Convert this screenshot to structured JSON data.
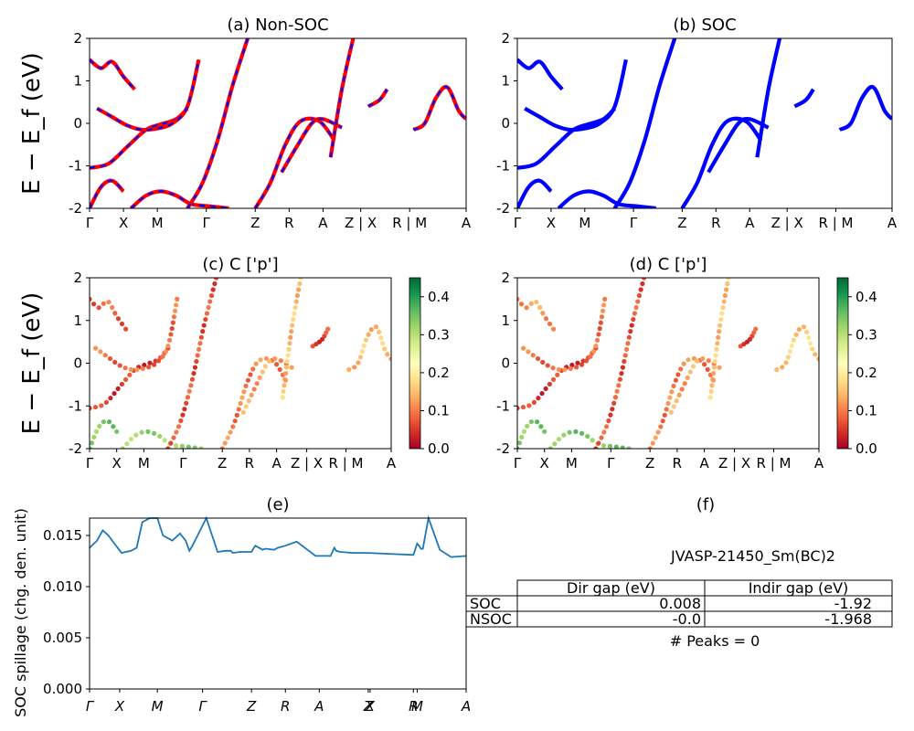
{
  "chart_data": [
    {
      "id": "a",
      "type": "line",
      "title": "(a) Non-SOC",
      "ylabel": "E − E_f (eV)",
      "ylim": [
        -2,
        2
      ],
      "yticks": [
        -2,
        -1,
        0,
        1,
        2
      ],
      "kpath_labels": [
        "Γ",
        "X",
        "M",
        "Γ",
        "Z",
        "R",
        "A",
        "Z | X",
        "R | M",
        "A"
      ],
      "line_colors": [
        "#ff0000",
        "#0000ff"
      ],
      "line_style": "red solid with blue dashed overlay",
      "series": [
        {
          "x": [
            0,
            0.05,
            0.1,
            0.15,
            0.19,
            0.23,
            0.26
          ],
          "y": [
            -1.05,
            -0.95,
            -0.55,
            -0.15,
            -0.02,
            0.1,
            0.35
          ]
        },
        {
          "x": [
            0.02,
            0.06,
            0.1,
            0.14,
            0.18,
            0.22,
            0.26,
            0.29
          ],
          "y": [
            0.35,
            0.15,
            -0.05,
            -0.15,
            -0.12,
            0.0,
            0.4,
            1.5
          ]
        },
        {
          "x": [
            0,
            0.03,
            0.06,
            0.09
          ],
          "y": [
            -2.0,
            -1.5,
            -1.35,
            -1.6
          ]
        },
        {
          "x": [
            0.11,
            0.15,
            0.19,
            0.23,
            0.27,
            0.32,
            0.37
          ],
          "y": [
            -2.0,
            -1.7,
            -1.6,
            -1.7,
            -1.9,
            -1.95,
            -2.0
          ]
        },
        {
          "x": [
            0,
            0.03,
            0.06,
            0.09,
            0.12
          ],
          "y": [
            1.5,
            1.3,
            1.45,
            1.1,
            0.8
          ]
        },
        {
          "x": [
            0.26,
            0.3,
            0.34,
            0.38,
            0.42
          ],
          "y": [
            -2.0,
            -1.4,
            -0.4,
            0.9,
            2.0
          ]
        },
        {
          "x": [
            0.44,
            0.48,
            0.52,
            0.56,
            0.61,
            0.65
          ],
          "y": [
            -2.0,
            -1.4,
            -0.5,
            0.05,
            0.05,
            -0.4
          ]
        },
        {
          "x": [
            0.51,
            0.55,
            0.59,
            0.62,
            0.67
          ],
          "y": [
            -1.15,
            -0.55,
            0.0,
            0.1,
            -0.1
          ]
        },
        {
          "x": [
            0.64,
            0.67,
            0.7
          ],
          "y": [
            -0.8,
            0.8,
            2.0
          ]
        },
        {
          "x": [
            0.74,
            0.77,
            0.79
          ],
          "y": [
            0.4,
            0.55,
            0.8
          ]
        },
        {
          "x": [
            0.86,
            0.89,
            0.92,
            0.95,
            0.98,
            1.0
          ],
          "y": [
            -0.15,
            0.0,
            0.6,
            0.85,
            0.3,
            0.1
          ]
        }
      ]
    },
    {
      "id": "b",
      "type": "line",
      "title": "(b) SOC",
      "ylim": [
        -2,
        2
      ],
      "yticks": [
        -2,
        -1,
        0,
        1,
        2
      ],
      "kpath_labels": [
        "Γ",
        "X",
        "M",
        "Γ",
        "Z",
        "R",
        "A",
        "Z | X",
        "R | M",
        "A"
      ],
      "line_colors": [
        "#0000ff"
      ],
      "series": [
        {
          "x": [
            0,
            0.05,
            0.1,
            0.15,
            0.19,
            0.23,
            0.26
          ],
          "y": [
            -1.05,
            -0.95,
            -0.55,
            -0.15,
            -0.02,
            0.1,
            0.35
          ]
        },
        {
          "x": [
            0.02,
            0.06,
            0.1,
            0.14,
            0.18,
            0.22,
            0.26,
            0.29
          ],
          "y": [
            0.35,
            0.15,
            -0.05,
            -0.15,
            -0.12,
            0.0,
            0.4,
            1.5
          ]
        },
        {
          "x": [
            0,
            0.03,
            0.06,
            0.09
          ],
          "y": [
            -2.0,
            -1.5,
            -1.35,
            -1.6
          ]
        },
        {
          "x": [
            0.11,
            0.15,
            0.19,
            0.23,
            0.27,
            0.32,
            0.37
          ],
          "y": [
            -2.0,
            -1.7,
            -1.6,
            -1.7,
            -1.9,
            -1.95,
            -2.0
          ]
        },
        {
          "x": [
            0,
            0.03,
            0.06,
            0.09,
            0.12
          ],
          "y": [
            1.5,
            1.3,
            1.45,
            1.1,
            0.8
          ]
        },
        {
          "x": [
            0.26,
            0.3,
            0.34,
            0.38,
            0.42
          ],
          "y": [
            -2.0,
            -1.4,
            -0.4,
            0.9,
            2.0
          ]
        },
        {
          "x": [
            0.44,
            0.48,
            0.52,
            0.56,
            0.61,
            0.65
          ],
          "y": [
            -2.0,
            -1.4,
            -0.5,
            0.05,
            0.05,
            -0.4
          ]
        },
        {
          "x": [
            0.51,
            0.55,
            0.59,
            0.62,
            0.67
          ],
          "y": [
            -1.15,
            -0.55,
            0.0,
            0.1,
            -0.1
          ]
        },
        {
          "x": [
            0.64,
            0.67,
            0.7
          ],
          "y": [
            -0.8,
            0.8,
            2.0
          ]
        },
        {
          "x": [
            0.74,
            0.77,
            0.79
          ],
          "y": [
            0.4,
            0.55,
            0.8
          ]
        },
        {
          "x": [
            0.86,
            0.89,
            0.92,
            0.95,
            0.98,
            1.0
          ],
          "y": [
            -0.15,
            0.0,
            0.6,
            0.85,
            0.3,
            0.1
          ]
        }
      ]
    },
    {
      "id": "c",
      "type": "scatter",
      "title": "(c)  C ['p']",
      "ylabel": "E − E_f (eV)",
      "ylim": [
        -2,
        2
      ],
      "yticks": [
        -2,
        -1,
        0,
        1,
        2
      ],
      "kpath_labels": [
        "Γ",
        "X",
        "M",
        "Γ",
        "Z",
        "R",
        "A",
        "Z | X",
        "R | M",
        "A"
      ],
      "colorbar": {
        "range": [
          0.0,
          0.45
        ],
        "ticks": [
          "0.0",
          "0.1",
          "0.2",
          "0.3",
          "0.4"
        ],
        "colormap": "RdYlGn"
      },
      "series": [
        {
          "x": [
            0,
            0.05,
            0.1,
            0.15,
            0.19,
            0.23,
            0.26
          ],
          "y": [
            -1.05,
            -0.95,
            -0.55,
            -0.15,
            -0.02,
            0.1,
            0.35
          ],
          "weight": 0.05
        },
        {
          "x": [
            0.02,
            0.06,
            0.1,
            0.14,
            0.18,
            0.22,
            0.26,
            0.29
          ],
          "y": [
            0.35,
            0.15,
            -0.05,
            -0.15,
            -0.12,
            0.0,
            0.4,
            1.5
          ],
          "weight": 0.09
        },
        {
          "x": [
            0,
            0.03,
            0.06,
            0.09
          ],
          "y": [
            -2.0,
            -1.5,
            -1.35,
            -1.6
          ],
          "weight": 0.34
        },
        {
          "x": [
            0.11,
            0.15,
            0.19,
            0.23,
            0.27,
            0.32,
            0.37
          ],
          "y": [
            -2.0,
            -1.7,
            -1.6,
            -1.7,
            -1.9,
            -1.95,
            -2.0
          ],
          "weight": 0.32
        },
        {
          "x": [
            0,
            0.03,
            0.06,
            0.09,
            0.12
          ],
          "y": [
            1.5,
            1.3,
            1.45,
            1.1,
            0.8
          ],
          "weight": 0.08
        },
        {
          "x": [
            0.26,
            0.3,
            0.34,
            0.38,
            0.42
          ],
          "y": [
            -2.0,
            -1.4,
            -0.4,
            0.9,
            2.0
          ],
          "weight": 0.07
        },
        {
          "x": [
            0.44,
            0.48,
            0.52,
            0.56,
            0.61,
            0.65
          ],
          "y": [
            -2.0,
            -1.4,
            -0.5,
            0.05,
            0.05,
            -0.4
          ],
          "weight": 0.1
        },
        {
          "x": [
            0.51,
            0.55,
            0.59,
            0.62,
            0.67
          ],
          "y": [
            -1.15,
            -0.55,
            0.0,
            0.1,
            -0.1
          ],
          "weight": 0.13
        },
        {
          "x": [
            0.64,
            0.67,
            0.7
          ],
          "y": [
            -0.8,
            0.8,
            2.0
          ],
          "weight": 0.15
        },
        {
          "x": [
            0.74,
            0.77,
            0.79
          ],
          "y": [
            0.4,
            0.55,
            0.8
          ],
          "weight": 0.06
        },
        {
          "x": [
            0.86,
            0.89,
            0.92,
            0.95,
            0.98,
            1.0
          ],
          "y": [
            -0.15,
            0.0,
            0.6,
            0.85,
            0.3,
            0.1
          ],
          "weight": 0.15
        }
      ]
    },
    {
      "id": "d",
      "type": "scatter",
      "title": "(d) C ['p']",
      "ylim": [
        -2,
        2
      ],
      "yticks": [
        -2,
        -1,
        0,
        1,
        2
      ],
      "kpath_labels": [
        "Γ",
        "X",
        "M",
        "Γ",
        "Z",
        "R",
        "A",
        "Z | X",
        "R | M",
        "A"
      ],
      "colorbar": {
        "range": [
          0.0,
          0.45
        ],
        "ticks": [
          "0.0",
          "0.1",
          "0.2",
          "0.3",
          "0.4"
        ],
        "colormap": "RdYlGn"
      },
      "series": [
        {
          "x": [
            0,
            0.05,
            0.1,
            0.15,
            0.19,
            0.23,
            0.26
          ],
          "y": [
            -1.05,
            -0.95,
            -0.55,
            -0.15,
            -0.02,
            0.1,
            0.35
          ],
          "weight": 0.05
        },
        {
          "x": [
            0.02,
            0.06,
            0.1,
            0.14,
            0.18,
            0.22,
            0.26,
            0.29
          ],
          "y": [
            0.35,
            0.15,
            -0.05,
            -0.15,
            -0.12,
            0.0,
            0.4,
            1.5
          ],
          "weight": 0.09
        },
        {
          "x": [
            0,
            0.03,
            0.06,
            0.09
          ],
          "y": [
            -2.0,
            -1.5,
            -1.35,
            -1.6
          ],
          "weight": 0.34
        },
        {
          "x": [
            0.11,
            0.15,
            0.19,
            0.23,
            0.27,
            0.32,
            0.37
          ],
          "y": [
            -2.0,
            -1.7,
            -1.6,
            -1.7,
            -1.9,
            -1.95,
            -2.0
          ],
          "weight": 0.34
        },
        {
          "x": [
            0,
            0.03,
            0.06,
            0.09,
            0.12
          ],
          "y": [
            1.5,
            1.3,
            1.45,
            1.1,
            0.8
          ],
          "weight": 0.12
        },
        {
          "x": [
            0.26,
            0.3,
            0.34,
            0.38,
            0.42
          ],
          "y": [
            -2.0,
            -1.4,
            -0.4,
            0.9,
            2.0
          ],
          "weight": 0.07
        },
        {
          "x": [
            0.44,
            0.48,
            0.52,
            0.56,
            0.61,
            0.65
          ],
          "y": [
            -2.0,
            -1.4,
            -0.5,
            0.05,
            0.05,
            -0.4
          ],
          "weight": 0.1
        },
        {
          "x": [
            0.51,
            0.55,
            0.59,
            0.62,
            0.67
          ],
          "y": [
            -1.15,
            -0.55,
            0.0,
            0.1,
            -0.1
          ],
          "weight": 0.13
        },
        {
          "x": [
            0.64,
            0.67,
            0.7
          ],
          "y": [
            -0.8,
            0.8,
            2.0
          ],
          "weight": 0.15
        },
        {
          "x": [
            0.74,
            0.77,
            0.79
          ],
          "y": [
            0.4,
            0.55,
            0.8
          ],
          "weight": 0.06
        },
        {
          "x": [
            0.86,
            0.89,
            0.92,
            0.95,
            0.98,
            1.0
          ],
          "y": [
            -0.15,
            0.0,
            0.6,
            0.85,
            0.3,
            0.1
          ],
          "weight": 0.16
        }
      ]
    },
    {
      "id": "e",
      "type": "line",
      "title": "(e)",
      "ylabel": "SOC spillage (chg. den. unit)",
      "ylim": [
        0,
        0.0167
      ],
      "yticks": [
        "0.000",
        "0.005",
        "0.010",
        "0.015"
      ],
      "ytick_values": [
        0,
        0.005,
        0.01,
        0.015
      ],
      "kpath_labels": [
        "Γ",
        "X",
        "M",
        "Γ",
        "Z",
        "R",
        "A",
        "Z",
        "X",
        "R",
        "M",
        "A"
      ],
      "line_color": "#1f77b4",
      "x": [
        0,
        0.02,
        0.035,
        0.05,
        0.06,
        0.085,
        0.11,
        0.125,
        0.14,
        0.16,
        0.18,
        0.195,
        0.205,
        0.22,
        0.24,
        0.255,
        0.265,
        0.27,
        0.28,
        0.31,
        0.34,
        0.36,
        0.375,
        0.38,
        0.4,
        0.43,
        0.44,
        0.46,
        0.465,
        0.47,
        0.49,
        0.5,
        0.52,
        0.55,
        0.6,
        0.64,
        0.65,
        0.655,
        0.665,
        0.7,
        0.74,
        0.86,
        0.87,
        0.875,
        0.88,
        0.885,
        0.9,
        0.93,
        0.96,
        1.0
      ],
      "y": [
        0.0138,
        0.0145,
        0.0155,
        0.015,
        0.0145,
        0.0133,
        0.0135,
        0.0138,
        0.0163,
        0.0167,
        0.0167,
        0.015,
        0.0148,
        0.0145,
        0.0152,
        0.0145,
        0.0135,
        0.0138,
        0.0145,
        0.0167,
        0.0134,
        0.0135,
        0.0135,
        0.0133,
        0.0134,
        0.0134,
        0.014,
        0.0136,
        0.0137,
        0.0137,
        0.0136,
        0.0138,
        0.014,
        0.0144,
        0.013,
        0.013,
        0.0138,
        0.0135,
        0.0134,
        0.0133,
        0.0133,
        0.0131,
        0.0142,
        0.014,
        0.0137,
        0.0137,
        0.0167,
        0.0136,
        0.0129,
        0.013
      ]
    }
  ],
  "table_panel": {
    "title": "(f)",
    "material": "JVASP-21450_Sm(BC)2",
    "col_headers": [
      "Dir gap (eV)",
      "Indir gap (eV)"
    ],
    "rows": [
      {
        "label": "SOC",
        "dir": "0.008",
        "indir": "-1.92"
      },
      {
        "label": "NSOC",
        "dir": "-0.0",
        "indir": "-1.968"
      }
    ],
    "peaks": "# Peaks = 0"
  }
}
